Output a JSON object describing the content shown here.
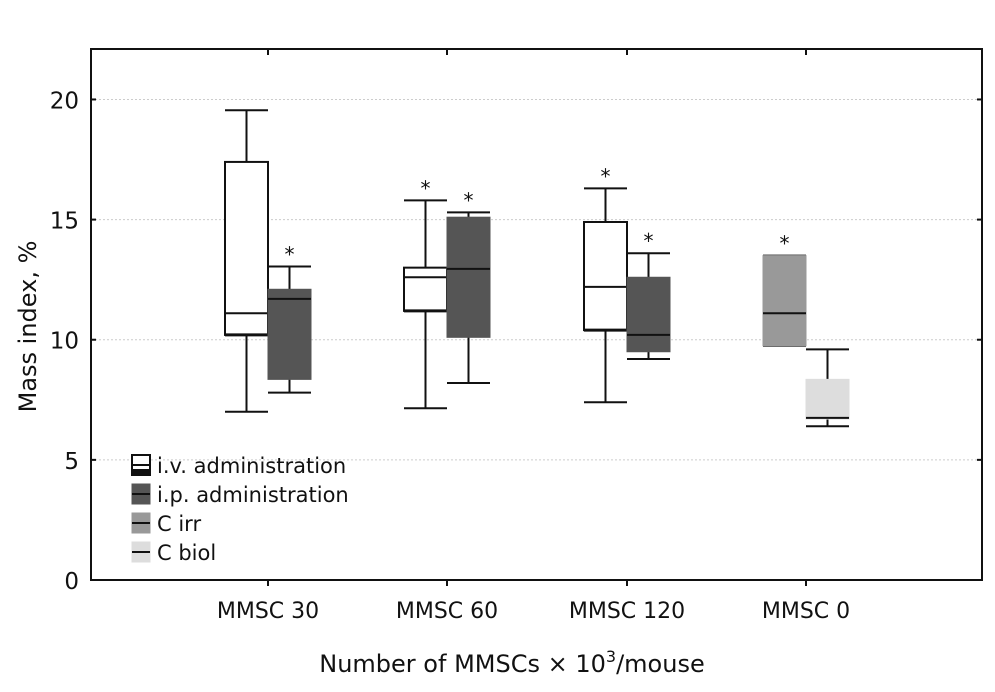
{
  "chart_data": {
    "type": "box",
    "title": "",
    "xlabel": "Number of MMSCs × 10³/mouse",
    "xlabel_parts": {
      "base": "Number of MMSCs × 10",
      "sup": "3",
      "suffix": "/mouse"
    },
    "ylabel": "Mass index, %",
    "ylim": [
      0,
      22.1
    ],
    "yticks": [
      0,
      5,
      10,
      15,
      20
    ],
    "grid": "horizontal-dotted",
    "categories": [
      "MMSC 30",
      "MMSC 60",
      "MMSC 120",
      "MMSC 0"
    ],
    "legend": {
      "placement": "bottom-left",
      "entries": [
        {
          "label": "i.v. administration",
          "color": "#ffffff"
        },
        {
          "label": "i.p. administration",
          "color": "#555555"
        },
        {
          "label": "C irr",
          "color": "#999999"
        },
        {
          "label": "C biol",
          "color": "#dddddd"
        }
      ]
    },
    "series": [
      {
        "name": "i.v. administration",
        "color": "#ffffff",
        "boxes": [
          {
            "category": "MMSC 30",
            "whisker_low": 7.0,
            "q1": 10.2,
            "median": 11.1,
            "q3": 17.4,
            "whisker_high": 19.55,
            "significant": false
          },
          {
            "category": "MMSC 60",
            "whisker_low": 7.15,
            "q1": 11.2,
            "median": 12.6,
            "q3": 13.0,
            "whisker_high": 15.8,
            "significant": true
          },
          {
            "category": "MMSC 120",
            "whisker_low": 7.4,
            "q1": 10.4,
            "median": 12.2,
            "q3": 14.9,
            "whisker_high": 16.3,
            "significant": true
          }
        ]
      },
      {
        "name": "i.p. administration",
        "color": "#555555",
        "boxes": [
          {
            "category": "MMSC 30",
            "whisker_low": 7.8,
            "q1": 8.35,
            "median": 11.7,
            "q3": 12.1,
            "whisker_high": 13.05,
            "significant": true
          },
          {
            "category": "MMSC 60",
            "whisker_low": 8.2,
            "q1": 10.1,
            "median": 12.95,
            "q3": 15.1,
            "whisker_high": 15.3,
            "significant": true
          },
          {
            "category": "MMSC 120",
            "whisker_low": 9.2,
            "q1": 9.5,
            "median": 10.2,
            "q3": 12.6,
            "whisker_high": 13.6,
            "significant": true
          }
        ]
      },
      {
        "name": "C irr",
        "color": "#999999",
        "boxes": [
          {
            "category": "MMSC 0",
            "whisker_low": 9.75,
            "q1": 9.75,
            "median": 11.1,
            "q3": 13.5,
            "whisker_high": 13.5,
            "significant": true
          }
        ]
      },
      {
        "name": "C biol",
        "color": "#dddddd",
        "boxes": [
          {
            "category": "MMSC 0",
            "whisker_low": 6.4,
            "q1": 6.7,
            "median": 6.75,
            "q3": 8.35,
            "whisker_high": 9.6,
            "significant": false
          }
        ]
      }
    ],
    "annotation_symbol": "*"
  }
}
